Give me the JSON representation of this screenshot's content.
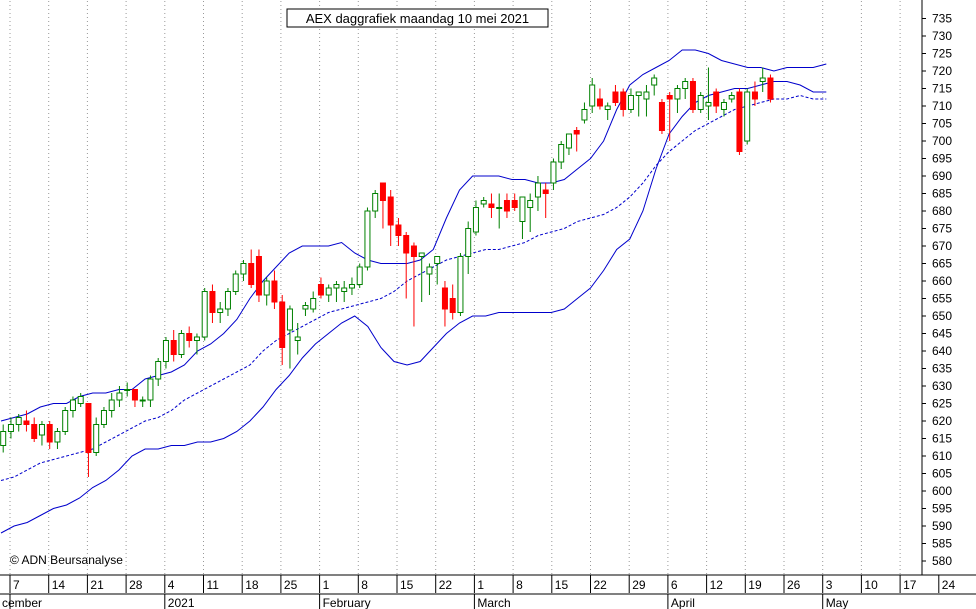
{
  "chart_data": {
    "type": "candlestick",
    "title": "AEX daggrafiek maandag 10 mei 2021",
    "copyright": "© ADN Beursanalyse",
    "ylim": [
      576,
      740
    ],
    "y_ticks": [
      580,
      585,
      590,
      595,
      600,
      605,
      610,
      615,
      620,
      625,
      630,
      635,
      640,
      645,
      650,
      655,
      660,
      665,
      670,
      675,
      680,
      685,
      690,
      695,
      700,
      705,
      710,
      715,
      720,
      725,
      730,
      735
    ],
    "x_tick_labels": [
      "7",
      "14",
      "21",
      "28",
      "4",
      "11",
      "18",
      "25",
      "1",
      "8",
      "15",
      "22",
      "1",
      "8",
      "15",
      "22",
      "29",
      "6",
      "12",
      "19",
      "26",
      "3",
      "10",
      "17",
      "24"
    ],
    "month_labels": [
      {
        "label": "cember",
        "at_tick": 0
      },
      {
        "label": "2021",
        "at_tick": 4
      },
      {
        "label": "February",
        "at_tick": 8
      },
      {
        "label": "March",
        "at_tick": 12
      },
      {
        "label": "April",
        "at_tick": 17
      },
      {
        "label": "May",
        "at_tick": 21
      }
    ],
    "grid": "vertical dotted",
    "colors": {
      "up": "#008000",
      "down": "#ff0000",
      "bands": "#0000cc",
      "axis": "#000000",
      "grid": "#999999"
    },
    "series": [
      {
        "kind": "candles",
        "values": [
          [
            613,
            619,
            611,
            617
          ],
          [
            617,
            621,
            615,
            619
          ],
          [
            619,
            622,
            617,
            621
          ],
          [
            620,
            623,
            617,
            619
          ],
          [
            619,
            621,
            614,
            615
          ],
          [
            616,
            620,
            613,
            619
          ],
          [
            619,
            620,
            612,
            614
          ],
          [
            614,
            618,
            612,
            617
          ],
          [
            617,
            624,
            616,
            623
          ],
          [
            623,
            627,
            621,
            626
          ],
          [
            625,
            628,
            624,
            627
          ],
          [
            625,
            625,
            604,
            611
          ],
          [
            611,
            621,
            610,
            619
          ],
          [
            619,
            624,
            618,
            623
          ],
          [
            623,
            628,
            621,
            626
          ],
          [
            626,
            630,
            624,
            628
          ],
          [
            629,
            631,
            627,
            629
          ],
          [
            629,
            629,
            624,
            626
          ],
          [
            626,
            627,
            624,
            626
          ],
          [
            626,
            633,
            624,
            632
          ],
          [
            632,
            638,
            630,
            637
          ],
          [
            637,
            644,
            635,
            643
          ],
          [
            643,
            646,
            637,
            639
          ],
          [
            639,
            646,
            638,
            645
          ],
          [
            645,
            647,
            641,
            643
          ],
          [
            643,
            645,
            639,
            644
          ],
          [
            644,
            658,
            643,
            657
          ],
          [
            657,
            659,
            648,
            651
          ],
          [
            651,
            654,
            648,
            652
          ],
          [
            652,
            658,
            650,
            657
          ],
          [
            657,
            663,
            656,
            662
          ],
          [
            662,
            666,
            660,
            665
          ],
          [
            665,
            669,
            658,
            659
          ],
          [
            667,
            669,
            654,
            656
          ],
          [
            656,
            661,
            653,
            660
          ],
          [
            660,
            663,
            652,
            654
          ],
          [
            654,
            656,
            636,
            641
          ],
          [
            646,
            653,
            635,
            652
          ],
          [
            643,
            648,
            639,
            644
          ],
          [
            652,
            654,
            650,
            653
          ],
          [
            652,
            657,
            651,
            655
          ],
          [
            659,
            661,
            655,
            656
          ],
          [
            656,
            659,
            654,
            658
          ],
          [
            658,
            660,
            654,
            659
          ],
          [
            657,
            660,
            654,
            658
          ],
          [
            658,
            661,
            656,
            659
          ],
          [
            659,
            665,
            658,
            664
          ],
          [
            664,
            681,
            663,
            680
          ],
          [
            680,
            686,
            678,
            685
          ],
          [
            688,
            688,
            675,
            683
          ],
          [
            684,
            686,
            670,
            676
          ],
          [
            676,
            678,
            670,
            673
          ],
          [
            673,
            674,
            655,
            668
          ],
          [
            670,
            671,
            647,
            667
          ],
          [
            667,
            668,
            654,
            668
          ],
          [
            662,
            665,
            656,
            664
          ],
          [
            665,
            667,
            659,
            667
          ],
          [
            658,
            660,
            647,
            652
          ],
          [
            655,
            659,
            649,
            651
          ],
          [
            651,
            668,
            650,
            667
          ],
          [
            667,
            677,
            662,
            675
          ],
          [
            674,
            683,
            673,
            681
          ],
          [
            682,
            684,
            681,
            683
          ],
          [
            682,
            685,
            678,
            681
          ],
          [
            681,
            685,
            675,
            681
          ],
          [
            683,
            685,
            678,
            680
          ],
          [
            683,
            685,
            680,
            681
          ],
          [
            677,
            684,
            672,
            684
          ],
          [
            681,
            685,
            674,
            683
          ],
          [
            684,
            690,
            680,
            688
          ],
          [
            686,
            688,
            678,
            685
          ],
          [
            688,
            695,
            686,
            694
          ],
          [
            694,
            700,
            692,
            699
          ],
          [
            698,
            702,
            696,
            702
          ],
          [
            703,
            704,
            697,
            702
          ],
          [
            706,
            711,
            705,
            709
          ],
          [
            710,
            718,
            708,
            716
          ],
          [
            712,
            715,
            709,
            710
          ],
          [
            709,
            711,
            706,
            710
          ],
          [
            714,
            716,
            710,
            711
          ],
          [
            714,
            715,
            707,
            709
          ],
          [
            709,
            715,
            708,
            713
          ],
          [
            713,
            714,
            707,
            714
          ],
          [
            712,
            716,
            707,
            714
          ],
          [
            716,
            719,
            713,
            718
          ],
          [
            711,
            712,
            702,
            703
          ],
          [
            713,
            714,
            700,
            712
          ],
          [
            712,
            716,
            708,
            715
          ],
          [
            715,
            718,
            712,
            717
          ],
          [
            717,
            718,
            708,
            709
          ],
          [
            709,
            714,
            708,
            713
          ],
          [
            710,
            721,
            706,
            711
          ],
          [
            714,
            715,
            708,
            710
          ],
          [
            709,
            712,
            707,
            711
          ],
          [
            712,
            714,
            711,
            713
          ],
          [
            714,
            715,
            696,
            697
          ],
          [
            700,
            715,
            699,
            714
          ],
          [
            714,
            717,
            710,
            712
          ],
          [
            717,
            721,
            714,
            718
          ],
          [
            718,
            719,
            711,
            712
          ]
        ]
      },
      {
        "kind": "upper_band",
        "values": [
          620,
          621,
          622,
          624,
          625,
          625,
          627,
          628,
          628,
          629,
          629,
          632,
          633,
          634,
          636,
          640,
          642,
          645,
          649,
          655,
          660,
          664,
          668,
          670,
          670,
          670,
          671,
          668,
          666,
          665,
          665,
          665,
          666,
          669,
          678,
          686,
          690,
          690,
          690,
          689,
          689,
          688,
          688,
          689,
          692,
          695,
          700,
          709,
          716,
          719,
          721,
          723,
          726,
          726,
          725,
          723,
          722,
          721,
          721,
          720,
          721,
          721,
          721,
          722
        ]
      },
      {
        "kind": "middle_band",
        "values": [
          603,
          604,
          606,
          608,
          609,
          610,
          611,
          612,
          614,
          616,
          618,
          620,
          621,
          623,
          626,
          628,
          630,
          632,
          634,
          636,
          640,
          643,
          645,
          647,
          649,
          651,
          652,
          653,
          654,
          655,
          657,
          660,
          662,
          664,
          666,
          667,
          668,
          669,
          669,
          670,
          671,
          673,
          674,
          675,
          677,
          678,
          679,
          681,
          684,
          688,
          693,
          697,
          700,
          703,
          705,
          707,
          709,
          710,
          711,
          712,
          712,
          713,
          712,
          712
        ]
      },
      {
        "kind": "lower_band",
        "values": [
          588,
          590,
          591,
          593,
          595,
          596,
          598,
          601,
          603,
          606,
          610,
          612,
          612,
          613,
          613,
          614,
          614,
          615,
          617,
          620,
          624,
          629,
          633,
          638,
          642,
          645,
          648,
          650,
          647,
          641,
          637,
          636,
          637,
          641,
          645,
          648,
          650,
          650,
          651,
          651,
          651,
          651,
          651,
          652,
          655,
          658,
          663,
          669,
          672,
          680,
          692,
          702,
          707,
          711,
          713,
          714,
          715,
          715,
          716,
          717,
          717,
          716,
          714,
          714
        ]
      }
    ]
  }
}
